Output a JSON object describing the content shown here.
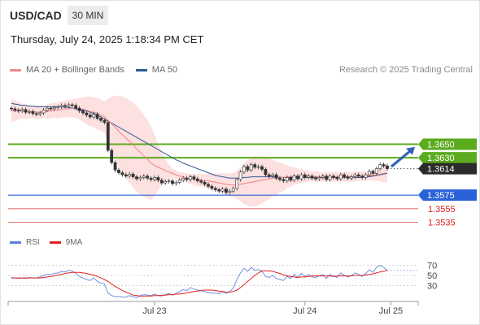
{
  "header": {
    "symbol": "USD/CAD",
    "timeframe": "30 MIN",
    "datetime": "Thursday, July 24, 2025 1:18:34 PM CET"
  },
  "legend": {
    "items": [
      {
        "label": "MA 20 + Bollinger Bands",
        "color": "#f28b82"
      },
      {
        "label": "MA 50",
        "color": "#2f5a96"
      }
    ],
    "credit": "Research © 2025 Trading Central"
  },
  "rsi_legend": {
    "items": [
      {
        "label": "RSI",
        "color": "#5b7fd6"
      },
      {
        "label": "9MA",
        "color": "#e02020"
      }
    ]
  },
  "chart_data": [
    {
      "type": "candlestick",
      "title": "",
      "ylim": [
        1.3525,
        1.3745
      ],
      "x_ticks": [
        {
          "label": "Jul 23",
          "index": 40
        },
        {
          "label": "Jul 24",
          "index": 82
        },
        {
          "label": "Jul 25",
          "index": 106
        }
      ],
      "levels": [
        {
          "value": 1.365,
          "label": "1.3650",
          "color": "#5aab1e",
          "kind": "resistance"
        },
        {
          "value": 1.363,
          "label": "1.3630",
          "color": "#5aab1e",
          "kind": "resistance"
        },
        {
          "value": 1.3614,
          "label": "1.3614",
          "color": "#333333",
          "kind": "last"
        },
        {
          "value": 1.3575,
          "label": "1.3575",
          "color": "#2a62d8",
          "kind": "pivot"
        },
        {
          "value": 1.3555,
          "label": "1.3555",
          "color": "#e06060",
          "kind": "support"
        },
        {
          "value": 1.3535,
          "label": "1.3535",
          "color": "#e06060",
          "kind": "support"
        }
      ],
      "closes": [
        1.3702,
        1.37,
        1.3699,
        1.3701,
        1.3697,
        1.3698,
        1.3695,
        1.3694,
        1.3696,
        1.37,
        1.3703,
        1.3702,
        1.3704,
        1.3705,
        1.3707,
        1.3706,
        1.3708,
        1.3707,
        1.3703,
        1.3699,
        1.3696,
        1.3693,
        1.369,
        1.3694,
        1.3688,
        1.3685,
        1.3682,
        1.3641,
        1.3623,
        1.3612,
        1.3608,
        1.3605,
        1.3603,
        1.3606,
        1.3602,
        1.3599,
        1.3601,
        1.3603,
        1.36,
        1.3598,
        1.3601,
        1.3597,
        1.3593,
        1.3595,
        1.3596,
        1.3592,
        1.3594,
        1.3597,
        1.36,
        1.3598,
        1.3602,
        1.3599,
        1.3596,
        1.3594,
        1.3591,
        1.3588,
        1.3585,
        1.3583,
        1.3581,
        1.3584,
        1.3579,
        1.3581,
        1.3585,
        1.3598,
        1.3609,
        1.3617,
        1.3612,
        1.362,
        1.3616,
        1.3617,
        1.3613,
        1.3605,
        1.3603,
        1.3605,
        1.36,
        1.3598,
        1.3596,
        1.3601,
        1.3597,
        1.3603,
        1.3599,
        1.3605,
        1.3601,
        1.3603,
        1.36,
        1.3599,
        1.3601,
        1.3603,
        1.3598,
        1.3603,
        1.3601,
        1.3599,
        1.3605,
        1.3602,
        1.36,
        1.3602,
        1.3605,
        1.3603,
        1.3601,
        1.3605,
        1.361,
        1.3607,
        1.3614,
        1.362,
        1.3618,
        1.3614
      ],
      "ma20": [
        1.3699,
        1.3699,
        1.3699,
        1.3699,
        1.3698,
        1.3698,
        1.3698,
        1.3697,
        1.3697,
        1.3698,
        1.3698,
        1.3699,
        1.37,
        1.37,
        1.3701,
        1.3702,
        1.3702,
        1.3703,
        1.3703,
        1.3702,
        1.3701,
        1.37,
        1.3698,
        1.3697,
        1.3695,
        1.3693,
        1.369,
        1.3685,
        1.368,
        1.3675,
        1.3669,
        1.3664,
        1.3659,
        1.3654,
        1.3649,
        1.3643,
        1.3638,
        1.3633,
        1.3628,
        1.3622,
        1.3619,
        1.3616,
        1.3614,
        1.3611,
        1.3609,
        1.3607,
        1.3605,
        1.3603,
        1.3602,
        1.36,
        1.3599,
        1.3598,
        1.3597,
        1.3597,
        1.3596,
        1.3596,
        1.3595,
        1.3594,
        1.3593,
        1.3592,
        1.3591,
        1.359,
        1.359,
        1.359,
        1.3591,
        1.3592,
        1.3593,
        1.3594,
        1.3595,
        1.3596,
        1.3597,
        1.3598,
        1.3599,
        1.36,
        1.36,
        1.3601,
        1.3601,
        1.3602,
        1.3602,
        1.3603,
        1.3603,
        1.3603,
        1.3603,
        1.3603,
        1.3603,
        1.3602,
        1.3602,
        1.3602,
        1.3602,
        1.3602,
        1.3602,
        1.3602,
        1.3602,
        1.3602,
        1.3602,
        1.3602,
        1.3602,
        1.3603,
        1.3603,
        1.3603,
        1.3604,
        1.3604,
        1.3605,
        1.3606,
        1.3607,
        1.3608
      ],
      "bb_upper": [
        1.3717,
        1.3714,
        1.3712,
        1.371,
        1.3709,
        1.3708,
        1.3707,
        1.3707,
        1.3707,
        1.3707,
        1.3708,
        1.371,
        1.3711,
        1.3712,
        1.3713,
        1.3714,
        1.3715,
        1.3716,
        1.3717,
        1.3718,
        1.3719,
        1.372,
        1.372,
        1.3719,
        1.3718,
        1.3716,
        1.3713,
        1.3717,
        1.372,
        1.3721,
        1.3721,
        1.372,
        1.3718,
        1.3715,
        1.3711,
        1.3706,
        1.37,
        1.3693,
        1.3686,
        1.3676,
        1.3664,
        1.365,
        1.3638,
        1.3628,
        1.362,
        1.3614,
        1.3611,
        1.3609,
        1.3608,
        1.3607,
        1.3606,
        1.3606,
        1.3606,
        1.3606,
        1.3606,
        1.3607,
        1.3607,
        1.3607,
        1.3607,
        1.3607,
        1.3607,
        1.3607,
        1.3608,
        1.3611,
        1.3616,
        1.3622,
        1.3626,
        1.363,
        1.3632,
        1.3632,
        1.3631,
        1.363,
        1.3629,
        1.3627,
        1.3625,
        1.3623,
        1.3621,
        1.3619,
        1.3617,
        1.3616,
        1.3614,
        1.3613,
        1.3612,
        1.3611,
        1.361,
        1.361,
        1.3609,
        1.3609,
        1.3609,
        1.3609,
        1.3609,
        1.3609,
        1.3609,
        1.3609,
        1.3609,
        1.3609,
        1.3609,
        1.361,
        1.361,
        1.361,
        1.3611,
        1.3612,
        1.3614,
        1.3617,
        1.362,
        1.3622
      ],
      "bb_lower": [
        1.3681,
        1.3684,
        1.3686,
        1.3688,
        1.3687,
        1.3688,
        1.3689,
        1.3687,
        1.3687,
        1.3689,
        1.3688,
        1.3688,
        1.3689,
        1.3688,
        1.3689,
        1.369,
        1.3689,
        1.369,
        1.3689,
        1.3686,
        1.3683,
        1.368,
        1.3676,
        1.3675,
        1.3672,
        1.367,
        1.3667,
        1.3653,
        1.364,
        1.3629,
        1.3617,
        1.3608,
        1.36,
        1.3593,
        1.3587,
        1.358,
        1.3576,
        1.3573,
        1.357,
        1.3568,
        1.3574,
        1.3582,
        1.359,
        1.3594,
        1.3598,
        1.36,
        1.3599,
        1.3597,
        1.3596,
        1.3593,
        1.3592,
        1.359,
        1.3588,
        1.3588,
        1.3586,
        1.3585,
        1.3583,
        1.3581,
        1.3579,
        1.3577,
        1.3575,
        1.3573,
        1.3572,
        1.3569,
        1.3566,
        1.3562,
        1.356,
        1.3558,
        1.3558,
        1.356,
        1.3563,
        1.3566,
        1.3569,
        1.3573,
        1.3575,
        1.3579,
        1.3581,
        1.3585,
        1.3587,
        1.359,
        1.3592,
        1.3593,
        1.3594,
        1.3595,
        1.3596,
        1.3594,
        1.3595,
        1.3595,
        1.3595,
        1.3595,
        1.3595,
        1.3595,
        1.3595,
        1.3595,
        1.3595,
        1.3595,
        1.3595,
        1.3596,
        1.3596,
        1.3596,
        1.3597,
        1.3596,
        1.3596,
        1.3595,
        1.3594,
        1.3594
      ],
      "ma50": [
        1.371,
        1.3709,
        1.3708,
        1.3707,
        1.3707,
        1.3706,
        1.3706,
        1.3705,
        1.3705,
        1.3705,
        1.3705,
        1.3705,
        1.3705,
        1.3705,
        1.3705,
        1.3704,
        1.3704,
        1.3703,
        1.3702,
        1.3701,
        1.37,
        1.3699,
        1.3697,
        1.3695,
        1.3693,
        1.369,
        1.3687,
        1.3684,
        1.3681,
        1.3678,
        1.3675,
        1.3672,
        1.3669,
        1.3666,
        1.3663,
        1.366,
        1.3657,
        1.3654,
        1.3651,
        1.3648,
        1.3645,
        1.3642,
        1.3639,
        1.3636,
        1.3633,
        1.363,
        1.3627,
        1.3625,
        1.3622,
        1.362,
        1.3618,
        1.3616,
        1.3614,
        1.3612,
        1.361,
        1.3608,
        1.3606,
        1.3604,
        1.3603,
        1.3602,
        1.3601,
        1.36,
        1.36,
        1.36,
        1.36,
        1.3601,
        1.3601,
        1.3602,
        1.3602,
        1.3602,
        1.3602,
        1.3602,
        1.3602,
        1.3602,
        1.3602,
        1.3601,
        1.3601,
        1.3601,
        1.3601,
        1.3601,
        1.3601,
        1.3601,
        1.3601,
        1.3601,
        1.3601,
        1.3601,
        1.3601,
        1.3601,
        1.3601,
        1.3601,
        1.3601,
        1.3601,
        1.3601,
        1.3601,
        1.3601,
        1.3601,
        1.3601,
        1.3601,
        1.3601,
        1.3602,
        1.3602,
        1.3603,
        1.3604,
        1.3605,
        1.3606,
        1.3607
      ]
    },
    {
      "type": "line",
      "title": "",
      "ylim": [
        0,
        100
      ],
      "y_ticks": [
        30,
        50,
        70
      ],
      "series": [
        {
          "name": "RSI",
          "values": [
            46,
            45,
            44,
            45,
            44,
            46,
            45,
            45,
            47,
            50,
            52,
            52,
            54,
            55,
            58,
            57,
            60,
            59,
            54,
            48,
            45,
            42,
            40,
            45,
            38,
            35,
            33,
            15,
            10,
            8,
            8,
            7,
            7,
            10,
            8,
            6,
            10,
            12,
            11,
            10,
            13,
            10,
            9,
            12,
            14,
            11,
            14,
            18,
            22,
            20,
            26,
            23,
            21,
            20,
            18,
            16,
            15,
            15,
            14,
            18,
            14,
            18,
            25,
            42,
            55,
            64,
            58,
            66,
            60,
            62,
            58,
            48,
            46,
            50,
            44,
            42,
            40,
            48,
            44,
            52,
            46,
            54,
            48,
            52,
            47,
            46,
            49,
            52,
            44,
            52,
            49,
            46,
            55,
            50,
            47,
            50,
            55,
            52,
            48,
            54,
            61,
            56,
            66,
            70,
            66,
            60
          ]
        },
        {
          "name": "9MA",
          "values": [
            45,
            45,
            45,
            45,
            45,
            45,
            45,
            45,
            45,
            46,
            47,
            48,
            49,
            51,
            52,
            54,
            55,
            56,
            56,
            56,
            55,
            54,
            52,
            51,
            48,
            45,
            42,
            38,
            33,
            28,
            24,
            20,
            17,
            14,
            11,
            10,
            9,
            9,
            9,
            9,
            10,
            10,
            11,
            11,
            12,
            12,
            13,
            13,
            14,
            15,
            17,
            18,
            19,
            20,
            21,
            21,
            21,
            20,
            19,
            18,
            17,
            17,
            18,
            21,
            26,
            32,
            38,
            44,
            50,
            55,
            59,
            59,
            59,
            58,
            56,
            54,
            51,
            49,
            48,
            47,
            46,
            47,
            47,
            48,
            49,
            49,
            49,
            49,
            49,
            49,
            48,
            49,
            49,
            49,
            49,
            49,
            50,
            50,
            50,
            51,
            52,
            53,
            55,
            57,
            58,
            60
          ]
        }
      ]
    }
  ]
}
